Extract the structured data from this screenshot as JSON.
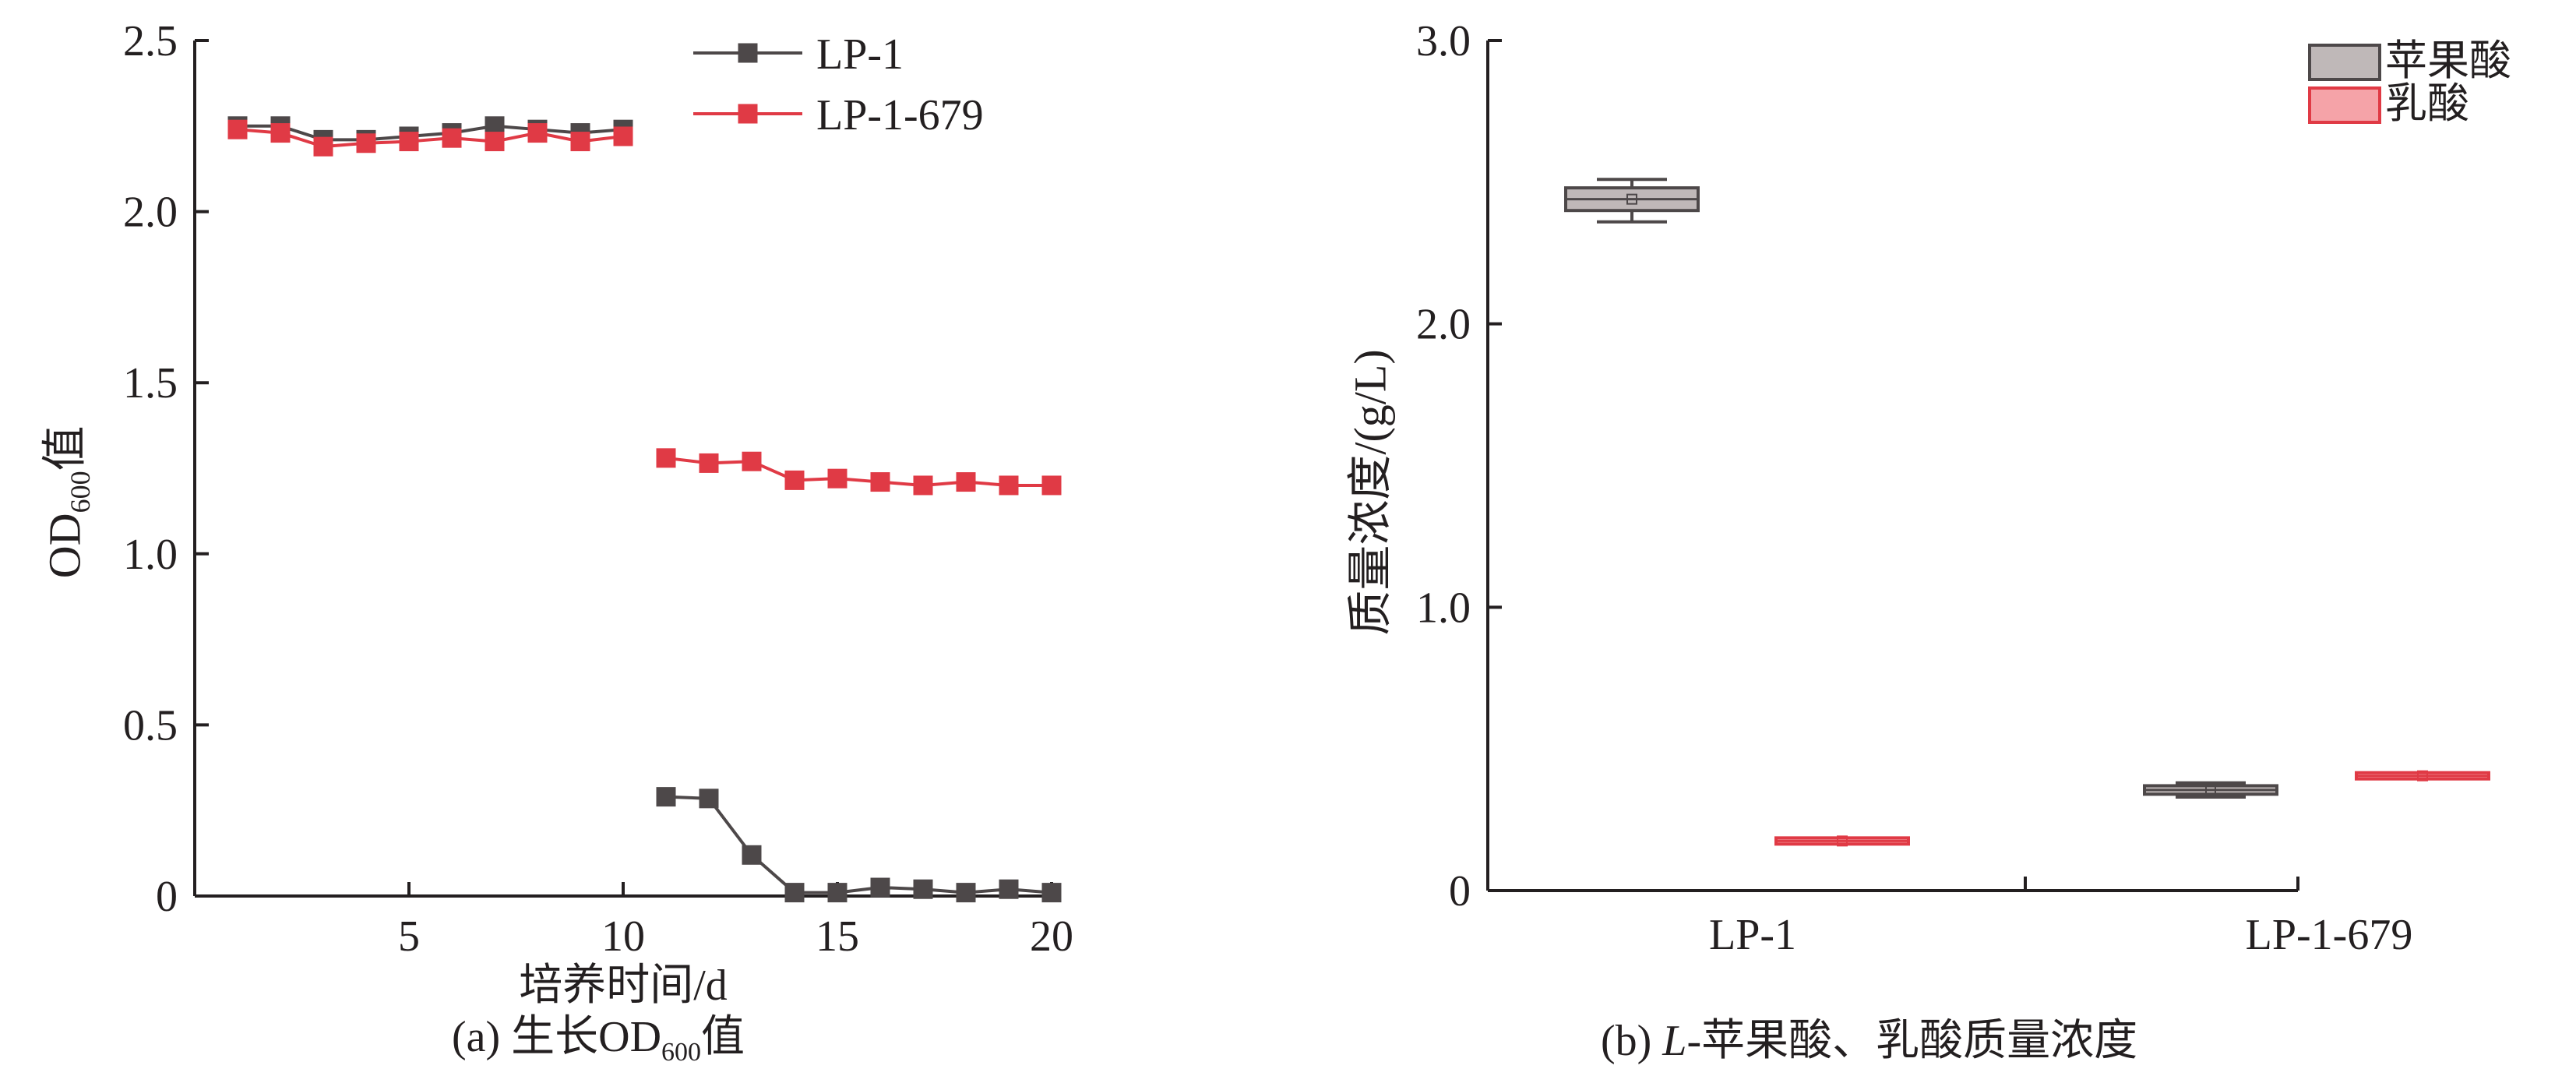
{
  "chart_data": [
    {
      "type": "line",
      "caption": {
        "prefix": "(a) 生长OD",
        "sub": "600",
        "suffix": "值"
      },
      "xlabel": "培养时间/d",
      "ylabel": {
        "main": "OD",
        "sub": "600",
        "suffix": "值"
      },
      "xlim": [
        0,
        20
      ],
      "ylim": [
        0,
        2.5
      ],
      "xticks": [
        5,
        10,
        15,
        20
      ],
      "yticks": [
        0,
        0.5,
        1.0,
        1.5,
        2.0,
        2.5
      ],
      "ytick_labels": [
        "0",
        "0.5",
        "1.0",
        "1.5",
        "2.0",
        "2.5"
      ],
      "legend_position": "top-center",
      "series": [
        {
          "name": "LP-1",
          "color": "#4d4849",
          "segments": [
            {
              "x": [
                1,
                2,
                3,
                4,
                5,
                6,
                7,
                8,
                9,
                10
              ],
              "y": [
                2.25,
                2.25,
                2.21,
                2.21,
                2.22,
                2.23,
                2.25,
                2.24,
                2.23,
                2.24
              ]
            },
            {
              "x": [
                11,
                12,
                13,
                14,
                15,
                16,
                17,
                18,
                19,
                20
              ],
              "y": [
                0.29,
                0.285,
                0.12,
                0.01,
                0.01,
                0.025,
                0.02,
                0.01,
                0.02,
                0.01
              ]
            }
          ]
        },
        {
          "name": "LP-1-679",
          "color": "#e03a45",
          "segments": [
            {
              "x": [
                1,
                2,
                3,
                4,
                5,
                6,
                7,
                8,
                9,
                10
              ],
              "y": [
                2.24,
                2.23,
                2.19,
                2.2,
                2.205,
                2.215,
                2.205,
                2.23,
                2.205,
                2.22
              ]
            },
            {
              "x": [
                11,
                12,
                13,
                14,
                15,
                16,
                17,
                18,
                19,
                20
              ],
              "y": [
                1.28,
                1.265,
                1.27,
                1.215,
                1.22,
                1.21,
                1.2,
                1.21,
                1.2,
                1.2
              ]
            }
          ]
        }
      ]
    },
    {
      "type": "box",
      "caption": {
        "prefix": "(b) ",
        "italic": "L",
        "suffix": "-苹果酸、乳酸质量浓度"
      },
      "categories": [
        "LP-1",
        "LP-1-679"
      ],
      "ylabel": "质量浓度/(g/L)",
      "ylim": [
        0,
        3.0
      ],
      "yticks": [
        0,
        1.0,
        2.0,
        3.0
      ],
      "ytick_labels": [
        "0",
        "1.0",
        "2.0",
        "3.0"
      ],
      "legend_position": "top-right",
      "series": [
        {
          "name": "苹果酸",
          "fill": "#bfb8b8",
          "stroke": "#4d4849",
          "boxes": [
            {
              "category": "LP-1",
              "min": 2.36,
              "q1": 2.4,
              "median": 2.44,
              "mean": 2.44,
              "q3": 2.48,
              "max": 2.51
            },
            {
              "category": "LP-1-679",
              "min": 0.33,
              "q1": 0.34,
              "median": 0.355,
              "mean": 0.355,
              "q3": 0.37,
              "max": 0.38
            }
          ]
        },
        {
          "name": "乳酸",
          "fill": "#f5a3a8",
          "stroke": "#e03a45",
          "boxes": [
            {
              "category": "LP-1",
              "min": 0.165,
              "q1": 0.17,
              "median": 0.175,
              "mean": 0.175,
              "q3": 0.18,
              "max": 0.185
            },
            {
              "category": "LP-1-679",
              "min": 0.395,
              "q1": 0.4,
              "median": 0.405,
              "mean": 0.405,
              "q3": 0.41,
              "max": 0.415
            }
          ]
        }
      ]
    }
  ]
}
